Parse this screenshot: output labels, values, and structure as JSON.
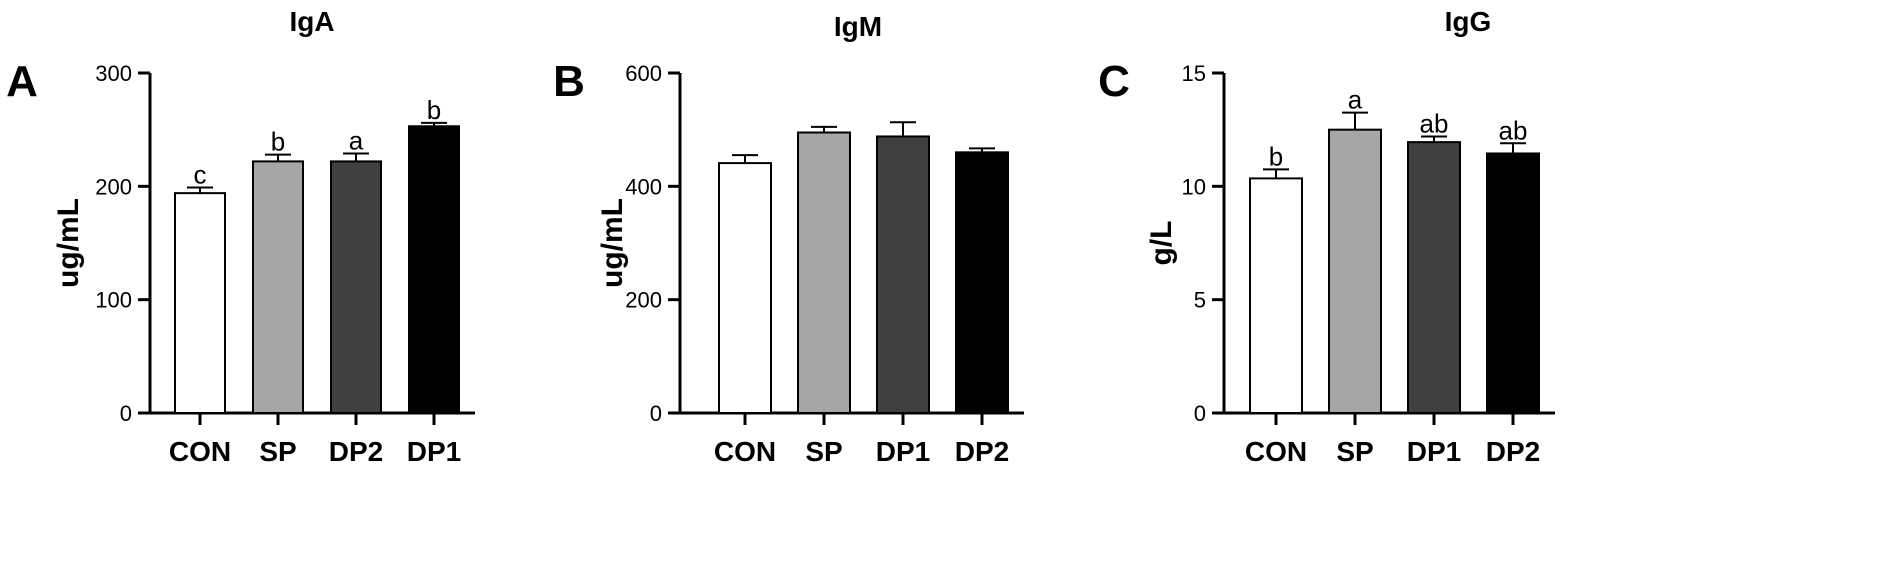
{
  "colors": {
    "CON": "#ffffff",
    "SP": "#a6a6a6",
    "dark": "#404040",
    "black": "#000000",
    "outline": "#000000"
  },
  "chart_data": [
    {
      "panel": "A",
      "type": "bar",
      "title": "IgA",
      "ylabel": "ug/mL",
      "xlabel": "",
      "categories": [
        "CON",
        "SP",
        "DP2",
        "DP1"
      ],
      "values": [
        194,
        222,
        222,
        253
      ],
      "errors": [
        5,
        6,
        7,
        3
      ],
      "significance": [
        "c",
        "b",
        "a",
        "b"
      ],
      "bar_colors": [
        "#ffffff",
        "#a6a6a6",
        "#404040",
        "#000000"
      ],
      "ylim": [
        0,
        300
      ],
      "yticks": [
        0,
        100,
        200,
        300
      ],
      "ytick_labels": [
        "0",
        "100",
        "200",
        "300"
      ],
      "grid": false
    },
    {
      "panel": "B",
      "type": "bar",
      "title": "IgM",
      "ylabel": "ug/mL",
      "xlabel": "",
      "categories": [
        "CON",
        "SP",
        "DP1",
        "DP2"
      ],
      "values": [
        441,
        495,
        488,
        460
      ],
      "errors": [
        14,
        10,
        25,
        7
      ],
      "significance": [
        "",
        "",
        "",
        ""
      ],
      "bar_colors": [
        "#ffffff",
        "#a6a6a6",
        "#404040",
        "#000000"
      ],
      "ylim": [
        0,
        600
      ],
      "yticks": [
        0,
        200,
        400,
        600
      ],
      "ytick_labels": [
        "0",
        "200",
        "400",
        "600"
      ],
      "grid": false
    },
    {
      "panel": "C",
      "type": "bar",
      "title": "IgG",
      "ylabel": "g/L",
      "xlabel": "",
      "categories": [
        "CON",
        "SP",
        "DP1",
        "DP2"
      ],
      "values": [
        10.35,
        12.5,
        11.95,
        11.45
      ],
      "errors": [
        0.4,
        0.75,
        0.25,
        0.45
      ],
      "significance": [
        "b",
        "a",
        "ab",
        "ab"
      ],
      "bar_colors": [
        "#ffffff",
        "#a6a6a6",
        "#404040",
        "#000000"
      ],
      "ylim": [
        0,
        15
      ],
      "yticks": [
        0,
        5,
        10,
        15
      ],
      "ytick_labels": [
        "0",
        "5",
        "10",
        "15"
      ],
      "grid": false
    }
  ]
}
